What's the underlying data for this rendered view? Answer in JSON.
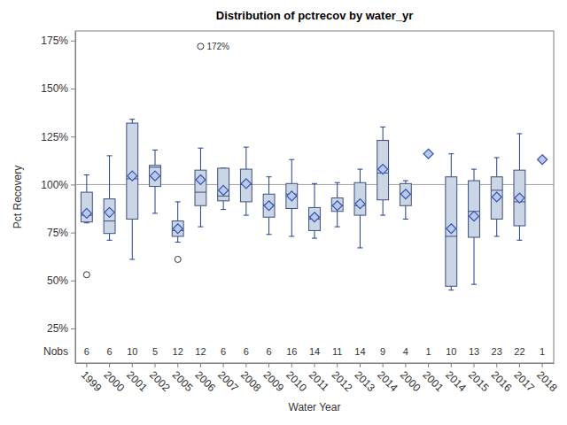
{
  "chart_data": {
    "type": "box",
    "title": "Distribution of pctrecov by water_yr",
    "x_label": "Water Year",
    "y_label": "Pct Recovery",
    "nobs_label": "Nobs",
    "color": "#cad5e5",
    "marker": "diamond",
    "categories": [
      "1999",
      "2000",
      "2001",
      "2002",
      "2005",
      "2006",
      "2007",
      "2008",
      "2009",
      "2010",
      "2011",
      "2012",
      "2013",
      "2014",
      "2000",
      "2001",
      "2014",
      "2015",
      "2016",
      "2017",
      "2018"
    ],
    "min": [
      80,
      71,
      61,
      85,
      70,
      78,
      87,
      84,
      74,
      73,
      72,
      78,
      67,
      84,
      82,
      null,
      45,
      48,
      73,
      71,
      null
    ],
    "q1": [
      80.5,
      74.5,
      82,
      99,
      73,
      89,
      91.5,
      91,
      83,
      87.5,
      76,
      86,
      84,
      92,
      89,
      null,
      47,
      72.5,
      82,
      78.5,
      null
    ],
    "median": [
      84,
      81,
      103,
      109,
      76,
      96,
      94,
      100,
      89.5,
      95,
      82,
      89,
      89,
      106,
      95,
      null,
      73,
      86,
      97,
      91,
      null
    ],
    "q3": [
      96,
      92.5,
      132,
      110,
      81,
      107.5,
      108.5,
      108,
      95,
      100.5,
      88,
      93,
      101,
      123,
      100.5,
      null,
      104,
      102,
      104,
      107.5,
      null
    ],
    "max": [
      105,
      115,
      134,
      118,
      91,
      119,
      108.5,
      119.5,
      104,
      113,
      100.5,
      101,
      108,
      130,
      102,
      null,
      116,
      108,
      114,
      126.5,
      null
    ],
    "mean": [
      85,
      85.5,
      104.5,
      104.5,
      77,
      102.5,
      97,
      100.5,
      89,
      94,
      83,
      89,
      90,
      108,
      95,
      116,
      77,
      83.5,
      93.5,
      93,
      113
    ],
    "outliers": [
      [
        53
      ],
      [],
      [],
      [],
      [
        61
      ],
      [
        {
          "value": 172,
          "label": "172%"
        }
      ],
      [],
      [],
      [],
      [],
      [],
      [],
      [],
      [],
      [],
      [],
      [],
      [],
      [],
      [],
      []
    ],
    "nobs": [
      6,
      6,
      10,
      5,
      12,
      12,
      6,
      6,
      6,
      16,
      14,
      11,
      14,
      9,
      4,
      1,
      10,
      13,
      23,
      22,
      1
    ],
    "reference_line": 100,
    "ylim": [
      7,
      180
    ],
    "yticks": [
      {
        "value": 25,
        "label": "25%"
      },
      {
        "value": 50,
        "label": "50%"
      },
      {
        "value": 75,
        "label": "75%"
      },
      {
        "value": 100,
        "label": "100%"
      },
      {
        "value": 125,
        "label": "125%"
      },
      {
        "value": 150,
        "label": "150%"
      },
      {
        "value": 175,
        "label": "175%"
      }
    ]
  }
}
